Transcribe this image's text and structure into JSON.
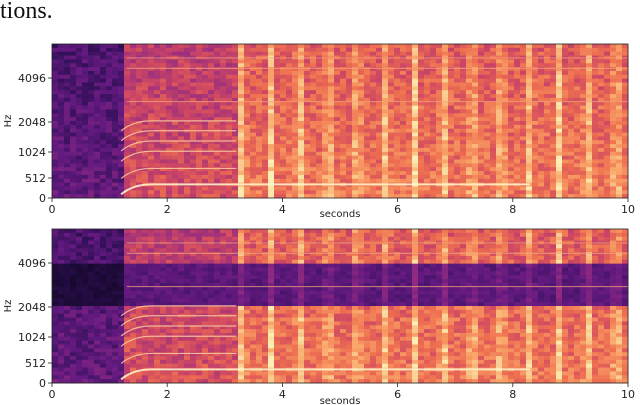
{
  "caption": "tions.",
  "chart_data": [
    {
      "type": "heatmap",
      "xlabel": "seconds",
      "ylabel": "Hz",
      "x_ticks": [
        0,
        2,
        4,
        6,
        8,
        10
      ],
      "y_ticks": [
        0,
        512,
        1024,
        2048,
        4096
      ],
      "xlim": [
        0,
        10
      ],
      "colormap": "magma",
      "regions": [
        {
          "from_s": 0,
          "to_s": 1.2,
          "level": "low"
        },
        {
          "from_s": 1.2,
          "to_s": 3.2,
          "level": "medium (harmonic tone)"
        },
        {
          "from_s": 3.2,
          "to_s": 10,
          "level": "high (broadband with periodic onsets)"
        }
      ],
      "harmonic_start_s": 1.2,
      "harmonic_end_s": 8.3
    },
    {
      "type": "heatmap",
      "xlabel": "seconds",
      "ylabel": "Hz",
      "x_ticks": [
        0,
        2,
        4,
        6,
        8,
        10
      ],
      "y_ticks": [
        0,
        512,
        1024,
        2048,
        4096
      ],
      "xlim": [
        0,
        10
      ],
      "colormap": "magma",
      "notch_band_hz": [
        2048,
        4096
      ],
      "regions": [
        {
          "from_s": 0,
          "to_s": 1.2,
          "level": "low"
        },
        {
          "from_s": 1.2,
          "to_s": 3.2,
          "level": "medium (harmonic tone)"
        },
        {
          "from_s": 3.2,
          "to_s": 10,
          "level": "high (broadband with periodic onsets)"
        }
      ],
      "harmonic_start_s": 1.2,
      "harmonic_end_s": 8.3
    }
  ]
}
